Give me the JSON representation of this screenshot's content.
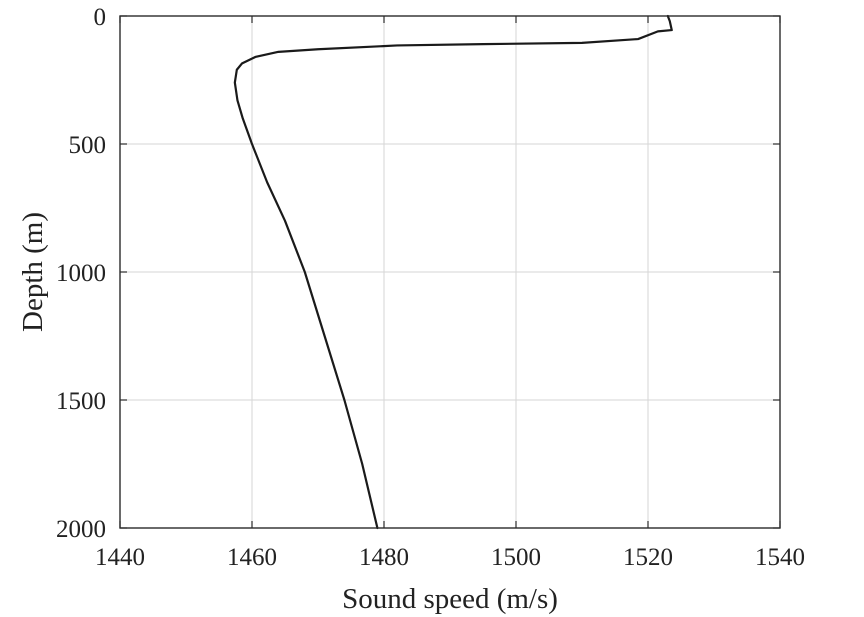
{
  "chart_data": {
    "type": "line",
    "title": "",
    "xlabel": "Sound speed (m/s)",
    "ylabel": "Depth (m)",
    "xlim": [
      1440,
      1540
    ],
    "ylim": [
      0,
      2000
    ],
    "y_reversed": true,
    "grid": true,
    "xticks": [
      1440,
      1460,
      1480,
      1500,
      1520,
      1540
    ],
    "yticks": [
      0,
      500,
      1000,
      1500,
      2000
    ],
    "xtick_labels": [
      "1440",
      "1460",
      "1480",
      "1500",
      "1520",
      "1540"
    ],
    "ytick_labels": [
      "0",
      "500",
      "1000",
      "1500",
      "2000"
    ],
    "series": [
      {
        "line_color": "#1a1a1a",
        "points": [
          {
            "x": 1523.0,
            "depth": 0
          },
          {
            "x": 1523.3,
            "depth": 20
          },
          {
            "x": 1523.6,
            "depth": 55
          },
          {
            "x": 1521.5,
            "depth": 60
          },
          {
            "x": 1518.5,
            "depth": 90
          },
          {
            "x": 1510.0,
            "depth": 105
          },
          {
            "x": 1495.0,
            "depth": 110
          },
          {
            "x": 1482.0,
            "depth": 115
          },
          {
            "x": 1470.0,
            "depth": 130
          },
          {
            "x": 1464.0,
            "depth": 140
          },
          {
            "x": 1460.5,
            "depth": 160
          },
          {
            "x": 1458.5,
            "depth": 185
          },
          {
            "x": 1457.7,
            "depth": 210
          },
          {
            "x": 1457.4,
            "depth": 260
          },
          {
            "x": 1457.8,
            "depth": 330
          },
          {
            "x": 1458.6,
            "depth": 400
          },
          {
            "x": 1460.0,
            "depth": 500
          },
          {
            "x": 1462.3,
            "depth": 650
          },
          {
            "x": 1465.0,
            "depth": 800
          },
          {
            "x": 1468.0,
            "depth": 1000
          },
          {
            "x": 1471.0,
            "depth": 1250
          },
          {
            "x": 1474.0,
            "depth": 1500
          },
          {
            "x": 1476.7,
            "depth": 1750
          },
          {
            "x": 1479.0,
            "depth": 2000
          }
        ]
      }
    ]
  }
}
